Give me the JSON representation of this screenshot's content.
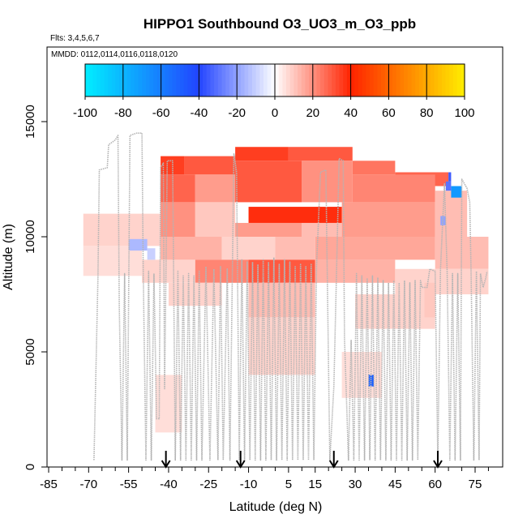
{
  "chart_data": {
    "type": "heatmap",
    "title": "HIPPO1 Southbound O3_UO3_m_O3_ppb",
    "subtitle_flights": "Flts: 3,4,5,6,7",
    "subtitle_dates": "MMDD: 0112,0114,0116,0118,0120",
    "xlabel": "Latitude (deg N)",
    "ylabel": "Altitude (m)",
    "xlim": [
      -90,
      85
    ],
    "ylim": [
      0,
      17400
    ],
    "x_ticks": [
      -85,
      -70,
      -55,
      -40,
      -25,
      -10,
      5,
      15,
      30,
      45,
      60,
      75
    ],
    "x_tick_labels": [
      "-85",
      "-70",
      "-55",
      "-40",
      "-25",
      "-10",
      "5",
      "15",
      "30",
      "45",
      "60",
      "75"
    ],
    "x_minor_ticks": [
      -80,
      -75,
      -65,
      -60,
      -50,
      -45,
      -35,
      -30,
      -20,
      -15,
      -5,
      0,
      10,
      20,
      25,
      35,
      40,
      50,
      55,
      65,
      70,
      80
    ],
    "y_ticks": [
      0,
      5000,
      10000,
      15000
    ],
    "y_tick_labels": [
      "0",
      "5000",
      "10000",
      "15000"
    ],
    "colorbar": {
      "min": -100,
      "max": 100,
      "ticks": [
        -100,
        -80,
        -60,
        -40,
        -20,
        0,
        20,
        40,
        60,
        80,
        100
      ],
      "tick_labels": [
        "-100",
        "-80",
        "-60",
        "-40",
        "-20",
        "0",
        "20",
        "40",
        "60",
        "80",
        "100"
      ],
      "colors": [
        "#00eeff",
        "#2255ff",
        "#ffffff",
        "#ff2200",
        "#ffee00"
      ]
    },
    "arrow_latitudes": [
      -41,
      -13,
      22,
      61
    ],
    "cells": [
      {
        "lat0": -43,
        "lat1": -34,
        "alt0": 12700,
        "alt1": 13500,
        "v": 35
      },
      {
        "lat0": -34,
        "lat1": -15,
        "alt0": 12700,
        "alt1": 13500,
        "v": 30
      },
      {
        "lat0": -15,
        "lat1": 5,
        "alt0": 13300,
        "alt1": 13900,
        "v": 35
      },
      {
        "lat0": 5,
        "lat1": 29,
        "alt0": 13300,
        "alt1": 13900,
        "v": 30
      },
      {
        "lat0": 29,
        "lat1": 45,
        "alt0": 12700,
        "alt1": 13300,
        "v": 25
      },
      {
        "lat0": 45,
        "lat1": 65,
        "alt0": 12200,
        "alt1": 12800,
        "v": 28
      },
      {
        "lat0": -43,
        "lat1": -30,
        "alt0": 11500,
        "alt1": 12700,
        "v": 28
      },
      {
        "lat0": -30,
        "lat1": -15,
        "alt0": 11500,
        "alt1": 12700,
        "v": 18
      },
      {
        "lat0": -15,
        "lat1": 10,
        "alt0": 11500,
        "alt1": 13300,
        "v": 30
      },
      {
        "lat0": 10,
        "lat1": 29,
        "alt0": 11500,
        "alt1": 13300,
        "v": 20
      },
      {
        "lat0": 29,
        "lat1": 60,
        "alt0": 11500,
        "alt1": 12700,
        "v": 22
      },
      {
        "lat0": -43,
        "lat1": -30,
        "alt0": 10000,
        "alt1": 11500,
        "v": 20
      },
      {
        "lat0": -30,
        "lat1": -15,
        "alt0": 10000,
        "alt1": 11500,
        "v": 10
      },
      {
        "lat0": -10,
        "lat1": 25,
        "alt0": 10600,
        "alt1": 11300,
        "v": 38
      },
      {
        "lat0": -15,
        "lat1": 10,
        "alt0": 10000,
        "alt1": 10600,
        "v": 18
      },
      {
        "lat0": 10,
        "lat1": 25,
        "alt0": 10000,
        "alt1": 10600,
        "v": 12
      },
      {
        "lat0": 25,
        "lat1": 60,
        "alt0": 10000,
        "alt1": 11500,
        "v": 18
      },
      {
        "lat0": 60,
        "lat1": 72,
        "alt0": 10000,
        "alt1": 12000,
        "v": 12
      },
      {
        "lat0": -72,
        "lat1": -43,
        "alt0": 9600,
        "alt1": 11000,
        "v": 8
      },
      {
        "lat0": -43,
        "lat1": -20,
        "alt0": 9000,
        "alt1": 10000,
        "v": 14
      },
      {
        "lat0": -20,
        "lat1": 0,
        "alt0": 9000,
        "alt1": 10000,
        "v": 8
      },
      {
        "lat0": 0,
        "lat1": 15,
        "alt0": 9000,
        "alt1": 10000,
        "v": 12
      },
      {
        "lat0": 15,
        "lat1": 60,
        "alt0": 9000,
        "alt1": 10000,
        "v": 16
      },
      {
        "lat0": 60,
        "lat1": 80,
        "alt0": 8600,
        "alt1": 10000,
        "v": 12
      },
      {
        "lat0": -72,
        "lat1": -50,
        "alt0": 8300,
        "alt1": 9600,
        "v": 6
      },
      {
        "lat0": -50,
        "lat1": -30,
        "alt0": 8000,
        "alt1": 9000,
        "v": 8
      },
      {
        "lat0": -30,
        "lat1": -10,
        "alt0": 8000,
        "alt1": 9000,
        "v": 22
      },
      {
        "lat0": -10,
        "lat1": 15,
        "alt0": 8000,
        "alt1": 9000,
        "v": 30
      },
      {
        "lat0": 15,
        "lat1": 45,
        "alt0": 8000,
        "alt1": 9000,
        "v": 14
      },
      {
        "lat0": 45,
        "lat1": 80,
        "alt0": 7500,
        "alt1": 8600,
        "v": 8
      },
      {
        "lat0": -40,
        "lat1": -20,
        "alt0": 7000,
        "alt1": 8000,
        "v": 8
      },
      {
        "lat0": -10,
        "lat1": 15,
        "alt0": 6500,
        "alt1": 8000,
        "v": 12
      },
      {
        "lat0": 30,
        "lat1": 60,
        "alt0": 6000,
        "alt1": 7500,
        "v": 8
      },
      {
        "lat0": -10,
        "lat1": 15,
        "alt0": 4000,
        "alt1": 6500,
        "v": 8
      },
      {
        "lat0": 25,
        "lat1": 40,
        "alt0": 3000,
        "alt1": 5000,
        "v": 6
      },
      {
        "lat0": -45,
        "lat1": -35,
        "alt0": 1500,
        "alt1": 4000,
        "v": 6
      },
      {
        "lat0": 56,
        "lat1": 60,
        "alt0": 6500,
        "alt1": 8000,
        "v": 10
      },
      {
        "lat0": -55,
        "lat1": -48,
        "alt0": 9400,
        "alt1": 9900,
        "v": -15
      },
      {
        "lat0": -48,
        "lat1": -45,
        "alt0": 9000,
        "alt1": 9500,
        "v": -10
      },
      {
        "lat0": 35,
        "lat1": 37,
        "alt0": 3500,
        "alt1": 4000,
        "v": -50
      },
      {
        "lat0": 66,
        "lat1": 70,
        "alt0": 11700,
        "alt1": 12200,
        "v": -70
      },
      {
        "lat0": 64,
        "lat1": 66,
        "alt0": 12000,
        "alt1": 12400,
        "v": -30
      },
      {
        "lat0": 65,
        "lat1": 66,
        "alt0": 12400,
        "alt1": 12800,
        "v": -35
      },
      {
        "lat0": 62,
        "lat1": 64,
        "alt0": 10500,
        "alt1": 10900,
        "v": -20
      }
    ],
    "flight_track": [
      [
        -68,
        300
      ],
      [
        -66.5,
        8200
      ],
      [
        -66,
        12900
      ],
      [
        -63,
        13000
      ],
      [
        -62.5,
        14000
      ],
      [
        -60,
        14200
      ],
      [
        -59,
        14400
      ],
      [
        -58.5,
        7000
      ],
      [
        -57.5,
        300
      ],
      [
        -56.5,
        8400
      ],
      [
        -55.5,
        300
      ],
      [
        -54.5,
        14400
      ],
      [
        -52,
        14500
      ],
      [
        -50,
        14500
      ],
      [
        -49.5,
        8400
      ],
      [
        -48.5,
        300
      ],
      [
        -47.5,
        8500
      ],
      [
        -46.5,
        300
      ],
      [
        -45.5,
        8400
      ],
      [
        -44.5,
        2100
      ],
      [
        -43.5,
        2100
      ],
      [
        -43,
        13000
      ],
      [
        -42,
        13200
      ],
      [
        -41.5,
        3400
      ],
      [
        -40.5,
        13300
      ],
      [
        -38.5,
        13300
      ],
      [
        -37.5,
        300
      ],
      [
        -36.5,
        8500
      ],
      [
        -35.5,
        300
      ],
      [
        -34.5,
        8300
      ],
      [
        -33.5,
        300
      ],
      [
        -32.5,
        8400
      ],
      [
        -31.5,
        300
      ],
      [
        -30.5,
        8300
      ],
      [
        -29.5,
        300
      ],
      [
        -28.5,
        8500
      ],
      [
        -27.5,
        300
      ],
      [
        -26,
        8700
      ],
      [
        -24.5,
        300
      ],
      [
        -23,
        8600
      ],
      [
        -21.5,
        300
      ],
      [
        -20.5,
        8700
      ],
      [
        -19.5,
        300
      ],
      [
        -18,
        8600
      ],
      [
        -17,
        300
      ],
      [
        -15.5,
        13600
      ],
      [
        -14.5,
        12800
      ],
      [
        -13.5,
        300
      ],
      [
        -12.5,
        9000
      ],
      [
        -11.5,
        300
      ],
      [
        -10.5,
        8900
      ],
      [
        -9.5,
        300
      ],
      [
        -8.5,
        8900
      ],
      [
        -7.5,
        300
      ],
      [
        -6.5,
        8800
      ],
      [
        -5.5,
        300
      ],
      [
        -4.5,
        9000
      ],
      [
        -3.5,
        300
      ],
      [
        -2.5,
        8900
      ],
      [
        -1.5,
        300
      ],
      [
        -0.5,
        9100
      ],
      [
        0.5,
        300
      ],
      [
        1.5,
        8800
      ],
      [
        2.5,
        300
      ],
      [
        3.5,
        9000
      ],
      [
        4.5,
        300
      ],
      [
        5.5,
        8900
      ],
      [
        6.5,
        300
      ],
      [
        7.5,
        8700
      ],
      [
        8.5,
        300
      ],
      [
        9.5,
        8800
      ],
      [
        10.5,
        300
      ],
      [
        11.5,
        8700
      ],
      [
        12.5,
        300
      ],
      [
        13.5,
        8800
      ],
      [
        14.5,
        300
      ],
      [
        15.5,
        8700
      ],
      [
        17,
        12800
      ],
      [
        19,
        12900
      ],
      [
        20.5,
        300
      ],
      [
        22,
        3500
      ],
      [
        24,
        13400
      ],
      [
        25.5,
        13300
      ],
      [
        26,
        5600
      ],
      [
        27.5,
        300
      ],
      [
        28.5,
        5500
      ],
      [
        29.5,
        300
      ],
      [
        30.5,
        8400
      ],
      [
        31.5,
        300
      ],
      [
        32.5,
        8300
      ],
      [
        33.5,
        300
      ],
      [
        34.5,
        8200
      ],
      [
        35.5,
        300
      ],
      [
        36.5,
        8300
      ],
      [
        37.5,
        300
      ],
      [
        38.5,
        8200
      ],
      [
        39.5,
        300
      ],
      [
        40.5,
        8100
      ],
      [
        41.5,
        300
      ],
      [
        42.5,
        8000
      ],
      [
        43.5,
        300
      ],
      [
        44.5,
        8100
      ],
      [
        45.5,
        300
      ],
      [
        46.5,
        8000
      ],
      [
        47.5,
        300
      ],
      [
        48.5,
        8100
      ],
      [
        49.5,
        300
      ],
      [
        50.5,
        8000
      ],
      [
        51.5,
        300
      ],
      [
        52.5,
        8100
      ],
      [
        53.5,
        300
      ],
      [
        54.5,
        8100
      ],
      [
        55,
        7800
      ],
      [
        57,
        7800
      ],
      [
        58,
        8600
      ],
      [
        60,
        8500
      ],
      [
        61,
        300
      ],
      [
        62,
        8600
      ],
      [
        63.5,
        12300
      ],
      [
        64.5,
        8500
      ],
      [
        65.5,
        300
      ],
      [
        66.5,
        8400
      ],
      [
        67.5,
        300
      ],
      [
        68.5,
        8400
      ],
      [
        69.5,
        300
      ],
      [
        70,
        12500
      ],
      [
        72,
        12100
      ],
      [
        73,
        11500
      ],
      [
        73.5,
        8300
      ],
      [
        74.5,
        300
      ],
      [
        75.5,
        8500
      ],
      [
        76.5,
        300
      ],
      [
        77,
        8400
      ],
      [
        78,
        7800
      ],
      [
        79,
        8200
      ],
      [
        79.5,
        8500
      ]
    ]
  }
}
